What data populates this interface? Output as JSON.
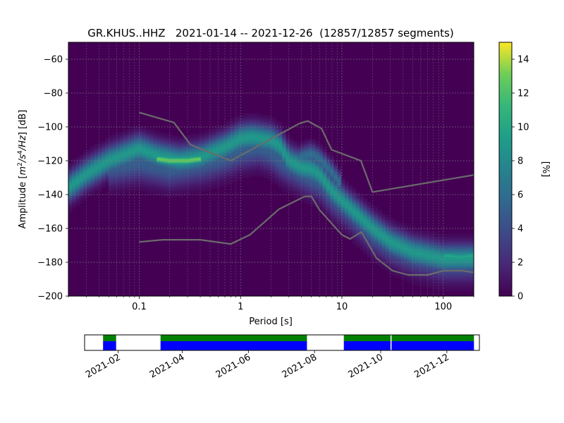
{
  "chart_data": [
    {
      "type": "heatmap",
      "title": "GR.KHUS..HHZ   2021-01-14 -- 2021-12-26  (12857/12857 segments)",
      "xlabel": "Period [s]",
      "ylabel_parts": [
        "Amplitude [",
        "m",
        "2",
        "/s",
        "4",
        "/Hz",
        "] [dB]"
      ],
      "x_scale": "log",
      "xlim": [
        0.02,
        200
      ],
      "ylim": [
        -200,
        -50
      ],
      "x_ticks": [
        {
          "value": 0.1,
          "label": "0.1"
        },
        {
          "value": 1,
          "label": "1"
        },
        {
          "value": 10,
          "label": "10"
        },
        {
          "value": 100,
          "label": "100"
        }
      ],
      "y_ticks": [
        {
          "value": -60,
          "label": "−60"
        },
        {
          "value": -80,
          "label": "−80"
        },
        {
          "value": -100,
          "label": "−100"
        },
        {
          "value": -120,
          "label": "−120"
        },
        {
          "value": -140,
          "label": "−140"
        },
        {
          "value": -160,
          "label": "−160"
        },
        {
          "value": -180,
          "label": "−180"
        },
        {
          "value": -200,
          "label": "−200"
        }
      ],
      "grid": true,
      "colormap": "viridis",
      "colorbar": {
        "label": "[%]",
        "range": [
          0,
          15
        ],
        "ticks": [
          {
            "value": 0,
            "label": "0"
          },
          {
            "value": 2,
            "label": "2"
          },
          {
            "value": 4,
            "label": "4"
          },
          {
            "value": 6,
            "label": "6"
          },
          {
            "value": 8,
            "label": "8"
          },
          {
            "value": 10,
            "label": "10"
          },
          {
            "value": 12,
            "label": "12"
          },
          {
            "value": 14,
            "label": "14"
          }
        ]
      },
      "density_ridges": [
        {
          "points": [
            [
              0.02,
              -136
            ],
            [
              0.03,
              -128
            ],
            [
              0.05,
              -120
            ],
            [
              0.1,
              -113
            ],
            [
              0.15,
              -117
            ],
            [
              0.25,
              -120
            ],
            [
              0.4,
              -118
            ],
            [
              0.7,
              -112
            ],
            [
              1.0,
              -107
            ],
            [
              1.3,
              -106
            ],
            [
              2.0,
              -108
            ],
            [
              2.5,
              -112
            ],
            [
              3.0,
              -120
            ],
            [
              4.0,
              -124
            ],
            [
              5.0,
              -125
            ],
            [
              6.0,
              -128
            ],
            [
              8.0,
              -138
            ],
            [
              12,
              -148
            ],
            [
              20,
              -160
            ],
            [
              30,
              -168
            ],
            [
              50,
              -174
            ],
            [
              100,
              -178
            ],
            [
              200,
              -178
            ]
          ],
          "peak": 9.0,
          "spread": 5.5
        },
        {
          "points": [
            [
              0.15,
              -119
            ],
            [
              0.2,
              -120
            ],
            [
              0.3,
              -120
            ],
            [
              0.4,
              -119
            ]
          ],
          "peak": 13.0,
          "spread": 2.0
        },
        {
          "points": [
            [
              0.05,
              -124
            ],
            [
              0.1,
              -121
            ],
            [
              0.2,
              -125
            ],
            [
              0.4,
              -122
            ],
            [
              0.7,
              -118
            ],
            [
              1.0,
              -114
            ],
            [
              1.5,
              -112
            ],
            [
              2.0,
              -115
            ],
            [
              2.5,
              -120
            ],
            [
              3.0,
              -123
            ],
            [
              4.0,
              -127
            ],
            [
              5.0,
              -130
            ],
            [
              6.0,
              -132
            ],
            [
              8.0,
              -141
            ],
            [
              12,
              -150
            ],
            [
              20,
              -163
            ],
            [
              30,
              -170
            ],
            [
              50,
              -176
            ],
            [
              100,
              -180
            ],
            [
              200,
              -180
            ]
          ],
          "peak": 5.0,
          "spread": 7.0
        },
        {
          "points": [
            [
              3.0,
              -122
            ],
            [
              4.0,
              -118
            ],
            [
              5.0,
              -116
            ],
            [
              6.0,
              -119
            ],
            [
              8.0,
              -127
            ],
            [
              10,
              -135
            ]
          ],
          "peak": 6.0,
          "spread": 4.0
        },
        {
          "points": [
            [
              1.2,
              -104
            ],
            [
              1.5,
              -105
            ],
            [
              2.0,
              -108
            ]
          ],
          "peak": 4.0,
          "spread": 3.0
        },
        {
          "points": [
            [
              100,
              -176
            ],
            [
              150,
              -177
            ],
            [
              200,
              -176
            ]
          ],
          "peak": 10.0,
          "spread": 2.0
        }
      ],
      "noise_models": [
        {
          "name": "nhnm",
          "points": [
            [
              0.1,
              -91.5
            ],
            [
              0.22,
              -97.4
            ],
            [
              0.32,
              -110.5
            ],
            [
              0.8,
              -120
            ],
            [
              3.8,
              -98
            ],
            [
              4.6,
              -96.5
            ],
            [
              6.3,
              -101
            ],
            [
              7.9,
              -113.5
            ],
            [
              15.4,
              -120
            ],
            [
              20,
              -138.5
            ],
            [
              200,
              -128.4
            ]
          ]
        },
        {
          "name": "nlnm",
          "points": [
            [
              0.1,
              -168
            ],
            [
              0.17,
              -166.7
            ],
            [
              0.4,
              -166.7
            ],
            [
              0.8,
              -169.2
            ],
            [
              1.24,
              -163.7
            ],
            [
              2.4,
              -148.6
            ],
            [
              4.3,
              -141.1
            ],
            [
              5.0,
              -141.1
            ],
            [
              6.0,
              -149
            ],
            [
              10,
              -163.8
            ],
            [
              12,
              -166.2
            ],
            [
              15.6,
              -162.1
            ],
            [
              21.9,
              -177.5
            ],
            [
              31.6,
              -185
            ],
            [
              45,
              -187.5
            ],
            [
              70,
              -187.5
            ],
            [
              101,
              -185
            ],
            [
              154,
              -185
            ],
            [
              200,
              -186
            ]
          ]
        }
      ]
    },
    {
      "type": "timeline",
      "x_ticks": [
        {
          "value": "2021-02",
          "label": "2021-02"
        },
        {
          "value": "2021-04",
          "label": "2021-04"
        },
        {
          "value": "2021-06",
          "label": "2021-06"
        },
        {
          "value": "2021-08",
          "label": "2021-08"
        },
        {
          "value": "2021-10",
          "label": "2021-10"
        },
        {
          "value": "2021-12",
          "label": "2021-12"
        }
      ],
      "xlim": [
        "2021-01-01",
        "2021-12-31"
      ],
      "coverage_colors": {
        "upper": "#008000",
        "lower": "#0000ff"
      },
      "coverage_segments": [
        {
          "start": "2021-01-18",
          "end": "2021-01-30"
        },
        {
          "start": "2021-03-12",
          "end": "2021-07-25"
        },
        {
          "start": "2021-08-28",
          "end": "2021-10-10"
        },
        {
          "start": "2021-10-11",
          "end": "2021-12-26"
        }
      ]
    }
  ]
}
